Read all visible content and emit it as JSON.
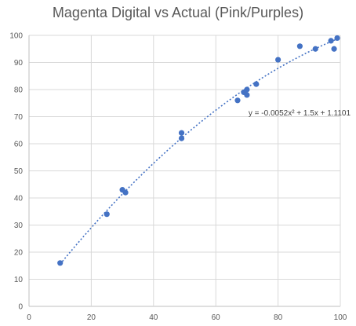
{
  "chart_data": {
    "type": "scatter",
    "title": "Magenta Digital vs Actual (Pink/Purples)",
    "xlabel": "",
    "ylabel": "",
    "xlim": [
      0,
      100
    ],
    "ylim": [
      0,
      100
    ],
    "x_ticks": [
      0,
      20,
      40,
      60,
      80,
      100
    ],
    "y_ticks": [
      0,
      10,
      20,
      30,
      40,
      50,
      60,
      70,
      80,
      90,
      100
    ],
    "grid": true,
    "legend": "none",
    "series": [
      {
        "x": [
          10,
          25,
          30,
          31,
          49,
          49,
          67,
          69,
          70,
          70,
          73,
          80,
          87,
          92,
          97,
          98,
          99
        ],
        "y": [
          16,
          34,
          43,
          42,
          64,
          62,
          76,
          79,
          80,
          78,
          82,
          91,
          96,
          95,
          98,
          95,
          99
        ],
        "color": "#4472C4"
      }
    ],
    "trendline": {
      "type": "polynomial",
      "order": 2,
      "coefficients": {
        "a": -0.0052,
        "b": 1.5,
        "c": 1.1101
      },
      "x_range": [
        10,
        99
      ],
      "color": "#4472C4",
      "equation_label": "y = -0.0052x² + 1.5x + 1.1101"
    }
  }
}
